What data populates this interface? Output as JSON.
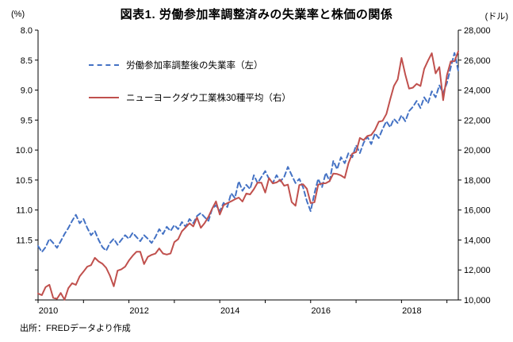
{
  "chart_data": {
    "type": "line",
    "title": "図表1. 労働参加率調整済みの失業率と株価の関係",
    "source": "出所：FREDデータより作成",
    "x_axis": {
      "start": "2010-01",
      "interval": "monthly",
      "points": 112,
      "labeled_years": [
        "2010",
        "2012",
        "2014",
        "2016",
        "2018"
      ],
      "first_year": 2010,
      "last_tick_year": 2019
    },
    "left_axis": {
      "unit": "(%)",
      "min": 8.0,
      "max": 12.5,
      "tick_step": 0.5,
      "labeled_max": 11.5,
      "inverted": true
    },
    "right_axis": {
      "unit": "(ドル)",
      "min": 10000,
      "max": 28000,
      "tick_step": 2000
    },
    "legend_position": "upper-left-inside",
    "grid": false,
    "series": [
      {
        "name": "労働参加率調整後の失業率（左）",
        "axis": "left",
        "color": "#4472C4",
        "line_style": "dashed",
        "values": [
          11.6,
          11.7,
          11.62,
          11.48,
          11.55,
          11.63,
          11.52,
          11.4,
          11.3,
          11.18,
          11.08,
          11.22,
          11.15,
          11.3,
          11.42,
          11.35,
          11.5,
          11.62,
          11.68,
          11.55,
          11.48,
          11.58,
          11.5,
          11.42,
          11.48,
          11.38,
          11.45,
          11.52,
          11.42,
          11.48,
          11.55,
          11.45,
          11.32,
          11.4,
          11.28,
          11.35,
          11.25,
          11.32,
          11.2,
          11.28,
          11.15,
          11.22,
          11.1,
          11.05,
          11.12,
          11.18,
          10.98,
          10.92,
          11.02,
          10.88,
          10.95,
          10.72,
          10.8,
          10.52,
          10.68,
          10.58,
          10.65,
          10.42,
          10.55,
          10.45,
          10.35,
          10.48,
          10.55,
          10.42,
          10.52,
          10.45,
          10.28,
          10.42,
          10.55,
          10.48,
          10.62,
          10.85,
          11.02,
          10.72,
          10.48,
          10.62,
          10.38,
          10.52,
          10.18,
          10.32,
          10.12,
          10.22,
          10.05,
          10.12,
          9.92,
          10.05,
          9.88,
          9.78,
          9.9,
          9.72,
          9.8,
          9.65,
          9.52,
          9.62,
          9.48,
          9.55,
          9.42,
          9.52,
          9.35,
          9.28,
          9.18,
          9.3,
          9.12,
          9.22,
          9.02,
          9.12,
          8.92,
          9.05,
          8.88,
          8.62,
          8.38,
          8.68
        ]
      },
      {
        "name": "ニューヨークダウ工業株30種平均（右）",
        "axis": "right",
        "color": "#C0504D",
        "line_style": "solid",
        "values": [
          10430,
          10325,
          10857,
          11009,
          10137,
          10080,
          10466,
          10015,
          10788,
          11118,
          11006,
          11578,
          11892,
          12226,
          12320,
          12811,
          12570,
          12414,
          12143,
          11614,
          10913,
          11955,
          12046,
          12218,
          12633,
          12952,
          13212,
          13214,
          12393,
          12880,
          13009,
          13091,
          13437,
          13096,
          13026,
          13104,
          13861,
          14054,
          14579,
          14840,
          15116,
          14910,
          15500,
          14810,
          15130,
          15546,
          16086,
          16577,
          15699,
          16322,
          16458,
          16581,
          16717,
          16827,
          16563,
          17098,
          17043,
          17391,
          17828,
          17823,
          17165,
          18133,
          17776,
          17841,
          18011,
          17620,
          17690,
          16528,
          16285,
          17664,
          17720,
          17425,
          16466,
          16517,
          17685,
          17774,
          17787,
          17930,
          18432,
          18401,
          18308,
          18142,
          19124,
          19763,
          19864,
          20812,
          20663,
          20941,
          21009,
          21350,
          21891,
          21948,
          22405,
          23377,
          24272,
          24719,
          26149,
          25029,
          24103,
          24163,
          24416,
          24271,
          25415,
          25965,
          26458,
          25116,
          25538,
          23327,
          24999,
          25916,
          25929,
          26593
        ]
      }
    ]
  }
}
